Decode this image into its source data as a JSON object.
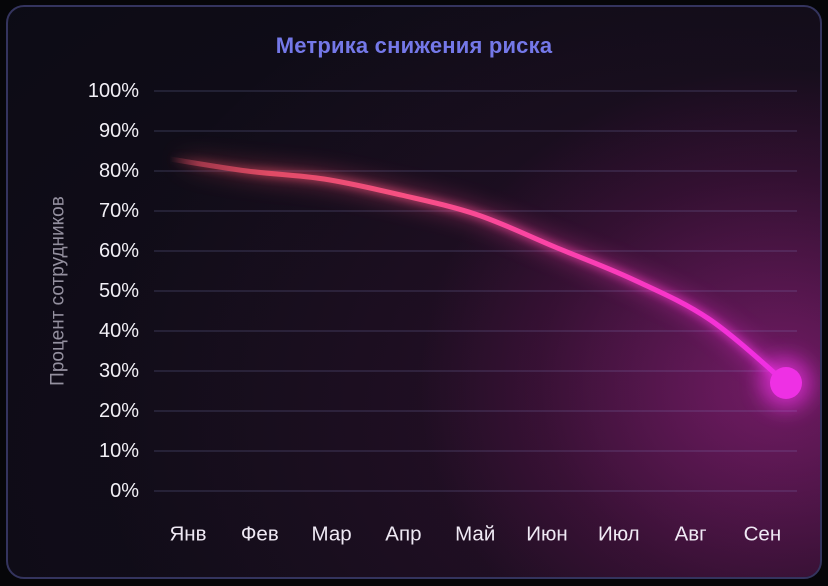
{
  "page": {
    "background": "#060609"
  },
  "card": {
    "background": "#0c0c15",
    "border_color": "#34345e"
  },
  "chart_data": {
    "type": "line",
    "title": "Метрика снижения риска",
    "title_color": "#7478e8",
    "categories": [
      "Янв",
      "Фев",
      "Мар",
      "Апр",
      "Май",
      "Июн",
      "Июл",
      "Авг",
      "Сен"
    ],
    "series": [
      {
        "name": "Процент сотрудников",
        "values": [
          83,
          80,
          78,
          74,
          69,
          61,
          53,
          43,
          27
        ]
      }
    ],
    "xlabel": "",
    "ylabel": "Процент сотрудников",
    "ylim": [
      0,
      100
    ],
    "ytick_step": 10,
    "ytick_suffix": "%",
    "grid": true,
    "legend": false,
    "line_gradient": [
      "#c44257",
      "#e04b65",
      "#f85083",
      "#fc43a8",
      "#f733cf",
      "#ee2ee6"
    ],
    "line_start_fade": true,
    "end_dot_color": "#ee30e4",
    "tick_label_color": "#f2f0f6",
    "x_label_color": "#efe9f4",
    "axis_title_color": "#94909f",
    "gridline_color": "#8a8ecf"
  }
}
